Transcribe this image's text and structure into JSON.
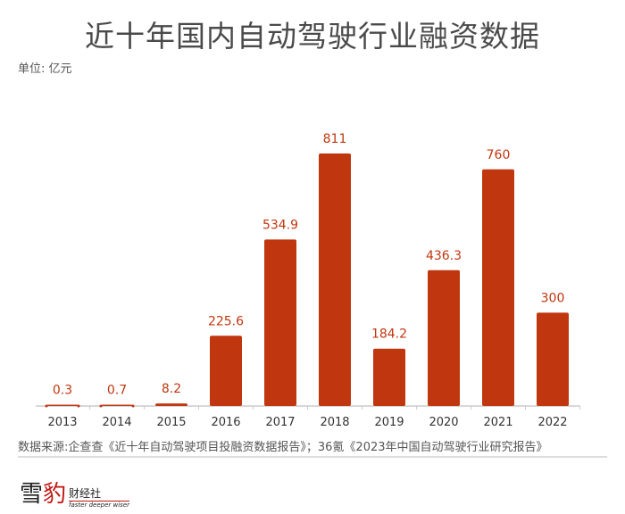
{
  "title": "近十年国内自动驾驶行业融资数据",
  "unit": "单位: 亿元",
  "source": "数据来源:企查查《近十年自动驾驶项目投融资数据报告》；36氪《2023年中国自动驾驶行业研究报告》",
  "logo": {
    "char1": "雪",
    "char2": "豹",
    "cn": "财经社",
    "en": "faster deeper wiser"
  },
  "colors": {
    "bar": "#c0360f",
    "label": "#c0360f",
    "axis": "#cccccc",
    "text": "#4a4a4a"
  },
  "chart_data": {
    "type": "bar",
    "title": "近十年国内自动驾驶行业融资数据",
    "ylabel": "单位: 亿元",
    "categories": [
      "2013",
      "2014",
      "2015",
      "2016",
      "2017",
      "2018",
      "2019",
      "2020",
      "2021",
      "2022"
    ],
    "values": [
      0.3,
      0.7,
      8.2,
      225.6,
      534.9,
      811,
      184.2,
      436.3,
      760,
      300
    ],
    "labels": [
      "0.3",
      "0.7",
      "8.2",
      "225.6",
      "534.9",
      "811",
      "184.2",
      "436.3",
      "760",
      "300"
    ],
    "ylim": [
      0,
      811
    ],
    "grid": false,
    "legend": "none"
  }
}
